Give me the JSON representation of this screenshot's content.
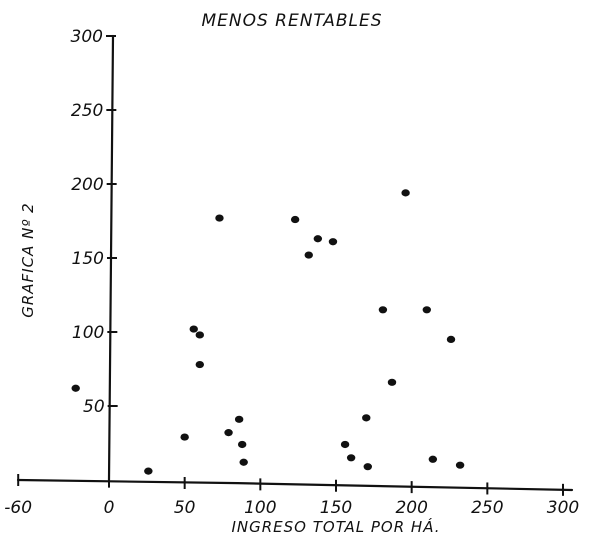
{
  "chart_data": {
    "type": "scatter",
    "title": "MENOS RENTABLES",
    "xlabel": "INGRESO TOTAL POR HÁ.",
    "ylabel": "GRAFICA Nº 2",
    "xlim": [
      -60,
      300
    ],
    "ylim": [
      0,
      300
    ],
    "xticks": [
      -60,
      0,
      50,
      100,
      150,
      200,
      250,
      300
    ],
    "xtick_labels": [
      "-60",
      "0",
      "50",
      "100",
      "150",
      "200",
      "250",
      "300"
    ],
    "yticks": [
      50,
      100,
      150,
      200,
      250,
      300
    ],
    "ytick_labels": [
      "50",
      "100",
      "150",
      "200",
      "250",
      "300"
    ],
    "grid": false,
    "legend": "none",
    "color": "#111111",
    "points": [
      {
        "x": -22,
        "y": 62
      },
      {
        "x": 26,
        "y": 6
      },
      {
        "x": 50,
        "y": 29
      },
      {
        "x": 56,
        "y": 102
      },
      {
        "x": 60,
        "y": 98
      },
      {
        "x": 60,
        "y": 78
      },
      {
        "x": 73,
        "y": 177
      },
      {
        "x": 79,
        "y": 32
      },
      {
        "x": 86,
        "y": 41
      },
      {
        "x": 88,
        "y": 24
      },
      {
        "x": 89,
        "y": 12
      },
      {
        "x": 123,
        "y": 176
      },
      {
        "x": 132,
        "y": 152
      },
      {
        "x": 138,
        "y": 163
      },
      {
        "x": 148,
        "y": 161
      },
      {
        "x": 156,
        "y": 24
      },
      {
        "x": 160,
        "y": 15
      },
      {
        "x": 170,
        "y": 42
      },
      {
        "x": 171,
        "y": 9
      },
      {
        "x": 181,
        "y": 115
      },
      {
        "x": 187,
        "y": 66
      },
      {
        "x": 196,
        "y": 194
      },
      {
        "x": 210,
        "y": 115
      },
      {
        "x": 214,
        "y": 14
      },
      {
        "x": 226,
        "y": 95
      },
      {
        "x": 232,
        "y": 10
      }
    ]
  }
}
